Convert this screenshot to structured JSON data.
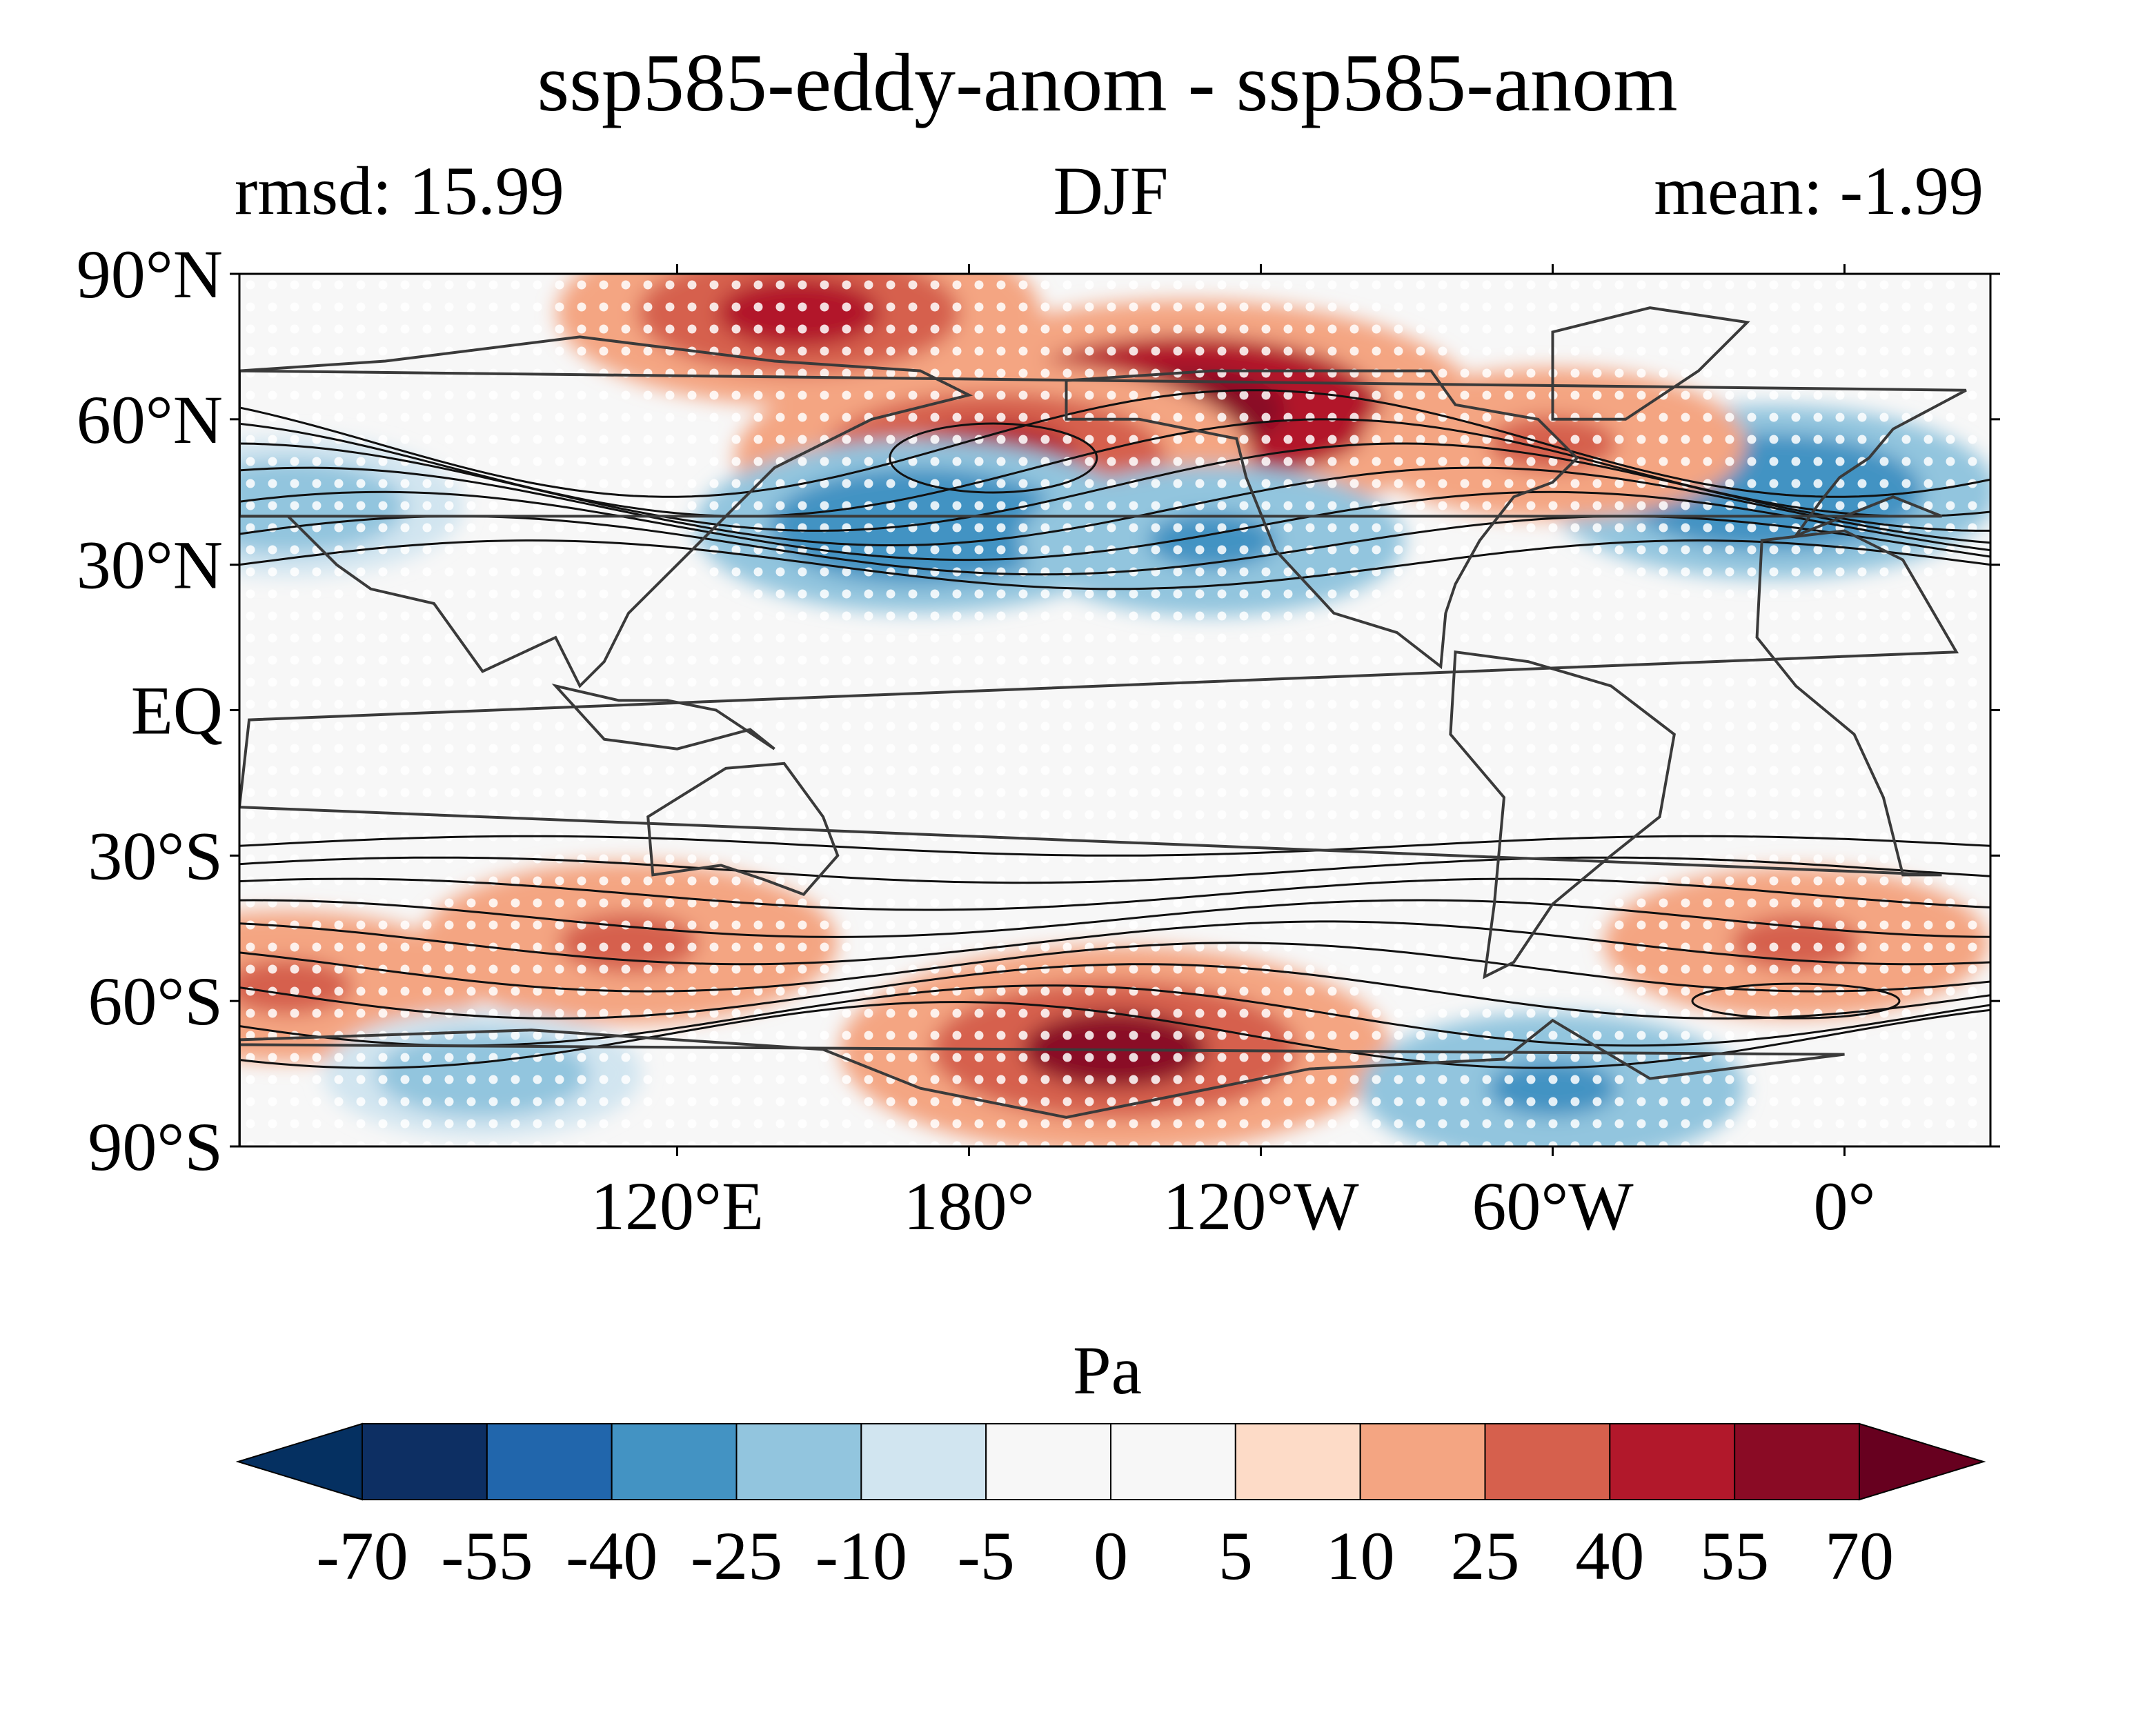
{
  "header": {
    "title": "ssp585-eddy-anom - ssp585-anom",
    "left_label": "rmsd: 15.99",
    "center_label": "DJF",
    "right_label": "mean: -1.99"
  },
  "map": {
    "projection": "PlateCarree",
    "central_longitude": 210,
    "lat_ticks": [
      "90°N",
      "60°N",
      "30°N",
      "EQ",
      "30°S",
      "60°S",
      "90°S"
    ],
    "lat_values": [
      90,
      60,
      30,
      0,
      -30,
      -60,
      -90
    ],
    "lon_ticks": [
      "120°E",
      "180°",
      "120°W",
      "60°W",
      "0°"
    ],
    "lon_values": [
      120,
      180,
      240,
      300,
      360
    ],
    "stippling": "white dots",
    "contours": "black lines"
  },
  "colorbar": {
    "label": "Pa",
    "levels": [
      "-70",
      "-55",
      "-40",
      "-25",
      "-10",
      "-5",
      "0",
      "5",
      "10",
      "25",
      "40",
      "55",
      "70"
    ],
    "colors": [
      "#053061",
      "#0d2f63",
      "#2166ac",
      "#4393c3",
      "#92c5de",
      "#d1e5f0",
      "#f7f7f7",
      "#f7f7f7",
      "#fddbc7",
      "#f4a582",
      "#d6604d",
      "#b2182b",
      "#8a0b25",
      "#67001f"
    ],
    "extend": "both"
  },
  "chart_data": {
    "type": "heatmap",
    "title": "ssp585-eddy-anom - ssp585-anom",
    "subtitle_left": "rmsd: 15.99",
    "subtitle_center": "DJF",
    "subtitle_right": "mean: -1.99",
    "units": "Pa",
    "rmsd": 15.99,
    "mean": -1.99,
    "lat_range": [
      -90,
      90
    ],
    "lon_range_east": [
      30,
      390
    ],
    "anomaly_regions": [
      {
        "lon": 145,
        "lat": 82,
        "value": 45
      },
      {
        "lon": 225,
        "lat": 62,
        "value": 60
      },
      {
        "lon": 185,
        "lat": 52,
        "value": 50
      },
      {
        "lon": 170,
        "lat": 38,
        "value": -40
      },
      {
        "lon": 230,
        "lat": 35,
        "value": -30
      },
      {
        "lon": 345,
        "lat": 45,
        "value": -40
      },
      {
        "lon": 300,
        "lat": 55,
        "value": 30
      },
      {
        "lon": 40,
        "lat": 42,
        "value": -25
      },
      {
        "lon": 210,
        "lat": -70,
        "value": 55
      },
      {
        "lon": 110,
        "lat": -48,
        "value": 35
      },
      {
        "lon": 40,
        "lat": -57,
        "value": 30
      },
      {
        "lon": 350,
        "lat": -48,
        "value": 30
      },
      {
        "lon": 300,
        "lat": -78,
        "value": -30
      },
      {
        "lon": 80,
        "lat": -75,
        "value": -20
      }
    ]
  }
}
